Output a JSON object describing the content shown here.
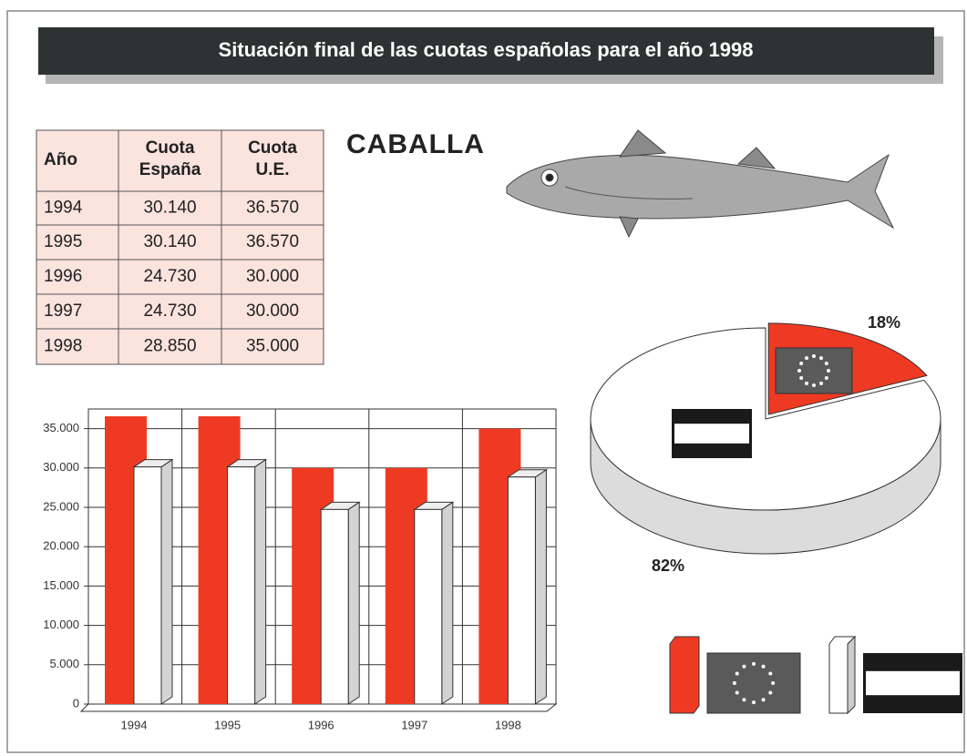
{
  "title": "Situación final de las cuotas españolas para el año 1998",
  "species": "CABALLA",
  "table": {
    "header": [
      "Año",
      [
        "Cuota",
        "España"
      ],
      [
        "Cuota",
        "U.E."
      ]
    ],
    "rows": [
      [
        "1994",
        "30.140",
        "36.570"
      ],
      [
        "1995",
        "30.140",
        "36.570"
      ],
      [
        "1996",
        "24.730",
        "30.000"
      ],
      [
        "1997",
        "24.730",
        "30.000"
      ],
      [
        "1998",
        "28.850",
        "35.000"
      ]
    ]
  },
  "chart_data": [
    {
      "type": "bar",
      "categories": [
        "1994",
        "1995",
        "1996",
        "1997",
        "1998"
      ],
      "series": [
        {
          "color": "#ef3a23",
          "values": [
            36570,
            36570,
            30000,
            30000,
            35000
          ]
        },
        {
          "color": "#ffffff",
          "values": [
            30140,
            30140,
            24730,
            24730,
            28850
          ]
        }
      ],
      "ylim": [
        0,
        37500
      ],
      "yticks": [
        0,
        {
          "value": 5000,
          "label": "5.000"
        },
        {
          "value": 10000,
          "label": "10.000"
        },
        {
          "value": 15000,
          "label": "15.000"
        },
        {
          "value": 20000,
          "label": "20.000"
        },
        {
          "value": 25000,
          "label": "25.000"
        },
        {
          "value": 30000,
          "label": "30.000"
        },
        {
          "value": 35000,
          "label": "35.000"
        }
      ],
      "grid": true
    },
    {
      "type": "pie",
      "values": [
        18,
        82
      ],
      "value_labels": [
        "18%",
        "82%"
      ],
      "colors": [
        "#ef3a23",
        "#ffffff"
      ]
    }
  ]
}
